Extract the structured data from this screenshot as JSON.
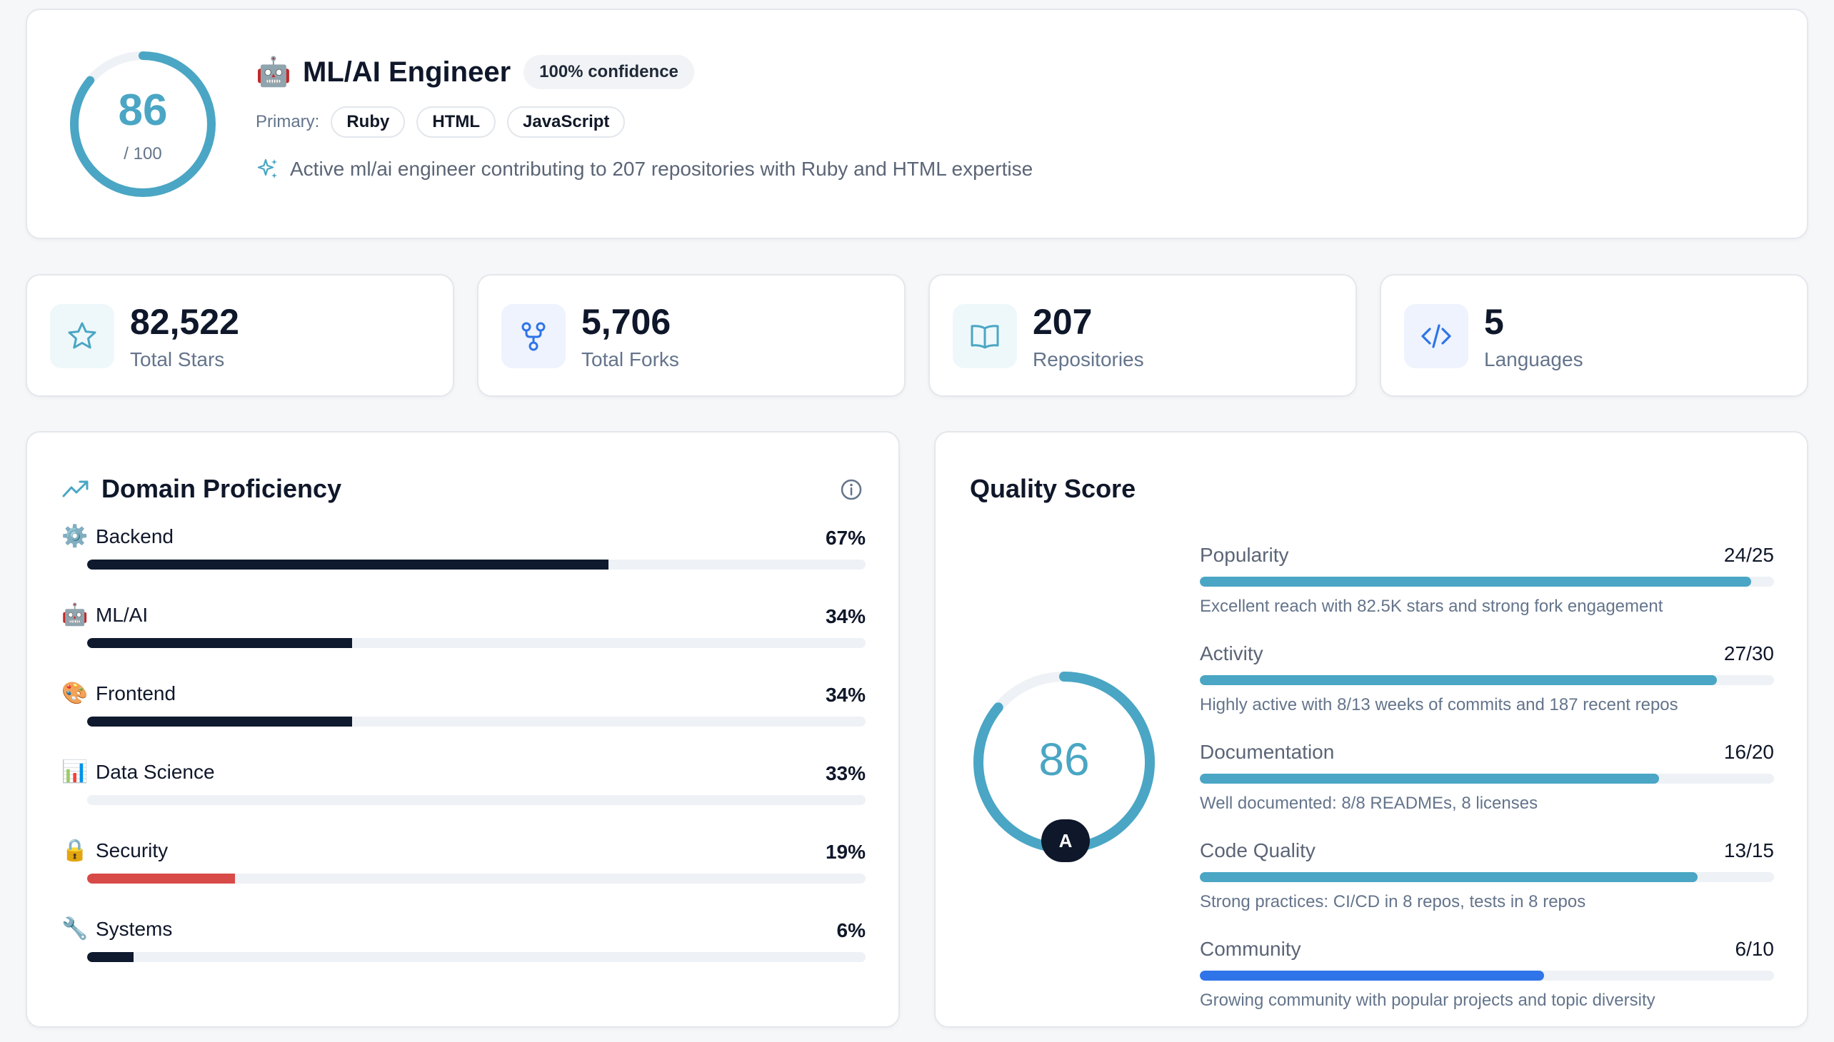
{
  "profile": {
    "score": "86",
    "score_max": "/ 100",
    "score_value": 86,
    "role_icon": "robot-emoji",
    "role": "ML/AI Engineer",
    "confidence": "100% confidence",
    "primary_label": "Primary:",
    "languages": [
      "Ruby",
      "HTML",
      "JavaScript"
    ],
    "description": "Active ml/ai engineer contributing to 207 repositories with Ruby and HTML expertise"
  },
  "stats": [
    {
      "value": "82,522",
      "label": "Total Stars",
      "icon": "star-icon",
      "color": "#4aa6c4"
    },
    {
      "value": "5,706",
      "label": "Total Forks",
      "icon": "fork-icon",
      "color": "#2f74e8"
    },
    {
      "value": "207",
      "label": "Repositories",
      "icon": "book-icon",
      "color": "#4aa6c4"
    },
    {
      "value": "5",
      "label": "Languages",
      "icon": "code-icon",
      "color": "#2f74e8"
    }
  ],
  "domain": {
    "title": "Domain Proficiency",
    "items": [
      {
        "name": "Backend",
        "pct": "67%",
        "value": 67,
        "emoji": "⚙️",
        "color": "#0f1a2e"
      },
      {
        "name": "ML/AI",
        "pct": "34%",
        "value": 34,
        "emoji": "🤖",
        "color": "#0f1a2e"
      },
      {
        "name": "Frontend",
        "pct": "34%",
        "value": 34,
        "emoji": "🎨",
        "color": "#0f1a2e"
      },
      {
        "name": "Data Science",
        "pct": "33%",
        "value": 33,
        "emoji": "📊",
        "color": "#eef1f5"
      },
      {
        "name": "Security",
        "pct": "19%",
        "value": 19,
        "emoji": "🔒",
        "color": "#d84a48"
      },
      {
        "name": "Systems",
        "pct": "6%",
        "value": 6,
        "emoji": "🔧",
        "color": "#0f1a2e"
      }
    ]
  },
  "quality": {
    "title": "Quality Score",
    "score": "86",
    "score_value": 86,
    "grade": "A",
    "items": [
      {
        "name": "Popularity",
        "score": "24/25",
        "value": 24,
        "max": 25,
        "desc": "Excellent reach with 82.5K stars and strong fork engagement",
        "color": "#4aa6c4"
      },
      {
        "name": "Activity",
        "score": "27/30",
        "value": 27,
        "max": 30,
        "desc": "Highly active with 8/13 weeks of commits and 187 recent repos",
        "color": "#4aa6c4"
      },
      {
        "name": "Documentation",
        "score": "16/20",
        "value": 16,
        "max": 20,
        "desc": "Well documented: 8/8 READMEs, 8 licenses",
        "color": "#4aa6c4"
      },
      {
        "name": "Code Quality",
        "score": "13/15",
        "value": 13,
        "max": 15,
        "desc": "Strong practices: CI/CD in 8 repos, tests in 8 repos",
        "color": "#4aa6c4"
      },
      {
        "name": "Community",
        "score": "6/10",
        "value": 6,
        "max": 10,
        "desc": "Growing community with popular projects and topic diversity",
        "color": "#2f74e8"
      }
    ]
  }
}
